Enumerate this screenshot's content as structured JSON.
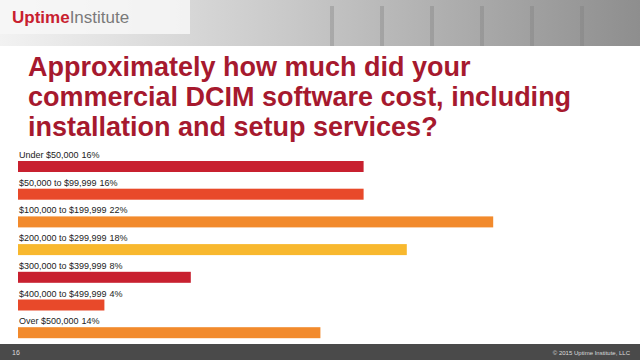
{
  "header": {
    "brand": "Uptime",
    "brand_suffix": "Institute"
  },
  "chart_data": {
    "type": "bar",
    "orientation": "horizontal",
    "title": "Approximately how much did your commercial DCIM software cost, including installation and setup services?",
    "categories": [
      "Under $50,000",
      "$50,000 to $99,999",
      "$100,000 to $199,999",
      "$200,000 to $299,999",
      "$300,000 to $399,999",
      "$400,000 to $499,999",
      "Over $500,000"
    ],
    "values": [
      16,
      16,
      22,
      18,
      8,
      4,
      14
    ],
    "value_labels": [
      "16%",
      "16%",
      "22%",
      "18%",
      "8%",
      "4%",
      "14%"
    ],
    "colors": [
      "#c8202f",
      "#e8492a",
      "#f28a2c",
      "#f8b82e",
      "#c8202f",
      "#e8492a",
      "#f28a2c"
    ],
    "xlim": [
      0,
      25
    ],
    "data_labels": true,
    "tick_labels": false,
    "grid": false
  },
  "footer": {
    "page_number": "16",
    "copyright": "© 2015 Uptime Institute, LLC"
  }
}
